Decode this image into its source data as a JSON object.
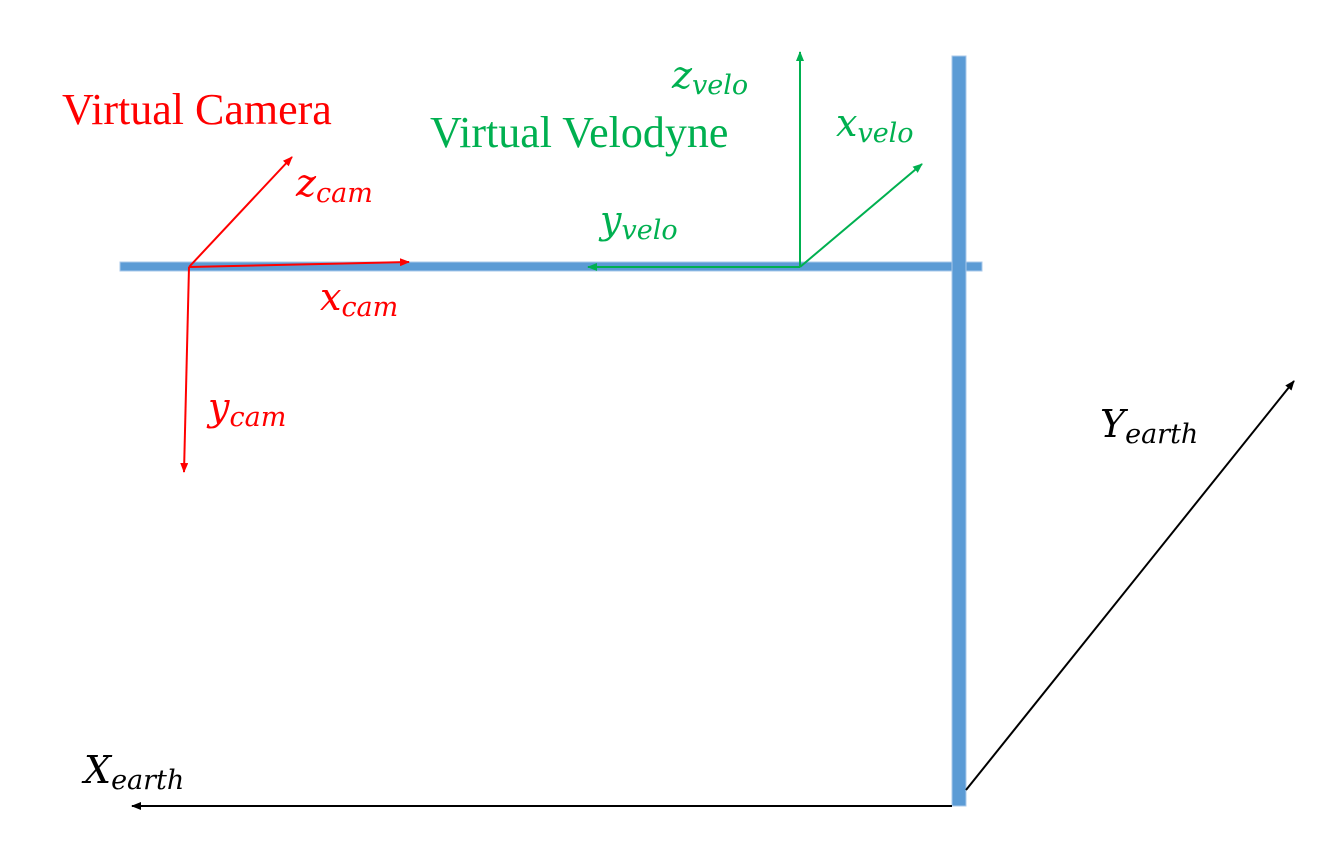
{
  "titles": {
    "camera": "Virtual Camera",
    "velodyne": "Virtual Velodyne"
  },
  "camera_axes": {
    "z": {
      "main": "z",
      "sub": "cam"
    },
    "x": {
      "main": "x",
      "sub": "cam"
    },
    "y": {
      "main": "y",
      "sub": "cam"
    }
  },
  "velo_axes": {
    "z": {
      "main": "z",
      "sub": "velo"
    },
    "x": {
      "main": "x",
      "sub": "velo"
    },
    "y": {
      "main": "y",
      "sub": "velo"
    }
  },
  "earth_axes": {
    "X": {
      "main": "X",
      "sub": "earth"
    },
    "Y": {
      "main": "Y",
      "sub": "earth"
    }
  },
  "colors": {
    "camera": "#ff0000",
    "velodyne": "#00b050",
    "earth": "#000000",
    "bar": "#5b9bd5"
  }
}
